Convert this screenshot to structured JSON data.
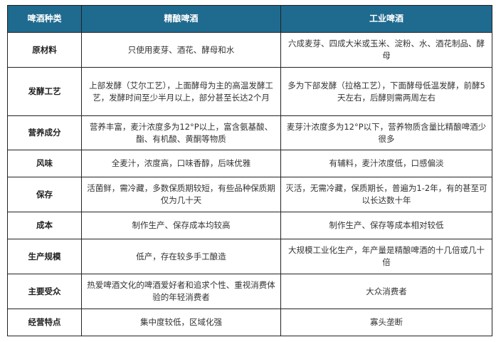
{
  "header": {
    "category": "啤酒种类",
    "craft": "精酿啤酒",
    "industrial": "工业啤酒"
  },
  "colors": {
    "header_bg": "#1f6a8f",
    "header_text": "#ffffff"
  },
  "rows": [
    {
      "label": "原材料",
      "craft": "只使用麦芽、酒花、酵母和水",
      "industrial": "六成麦芽、四成大米或玉米、淀粉、水、酒花制品、酵母"
    },
    {
      "label": "发酵工艺",
      "craft": "上部发酵（艾尔工艺），上面酵母为主的高温发酵工艺，发酵时间至少半月以上，部分甚至长达2个月",
      "industrial": "多为下部发酵（拉格工艺），下面酵母低温发酵，前酵5天左右，后酵则需两周左右"
    },
    {
      "label": "营养成分",
      "craft": "营养丰富，麦汁浓度多为12°P以上，富含氨基酸、酯、有机酸、黄酮等物质",
      "industrial": "麦芽汁浓度多为12°P以下，营养物质含量比精酿啤酒少很多"
    },
    {
      "label": "风味",
      "craft": "全麦汁，浓度高，口味香醇，后味优雅",
      "industrial": "有辅料，麦汁浓度低，口感偏淡"
    },
    {
      "label": "保存",
      "craft": "活菌鲜，需冷藏，多数保质期较短，有些品种保质期仅为几十天",
      "industrial": "灭活，无需冷藏，保质期长，普遍为1-2年，有的甚至可以长达数十年"
    },
    {
      "label": "成本",
      "craft": "制作生产、保存成本均较高",
      "industrial": "制作生产、保存等成本相对较低"
    },
    {
      "label": "生产规模",
      "craft": "低产，存在较多手工酿造",
      "industrial": "大规模工业化生产，年产量是精酿啤酒的十几倍或几十倍"
    },
    {
      "label": "主要受众",
      "craft": "热爱啤酒文化的啤酒爱好者和追求个性、重视消费体验的年轻消费者",
      "industrial": "大众消费者"
    },
    {
      "label": "经营特点",
      "craft": "集中度较低，区域化强",
      "industrial": "寡头垄断"
    }
  ]
}
